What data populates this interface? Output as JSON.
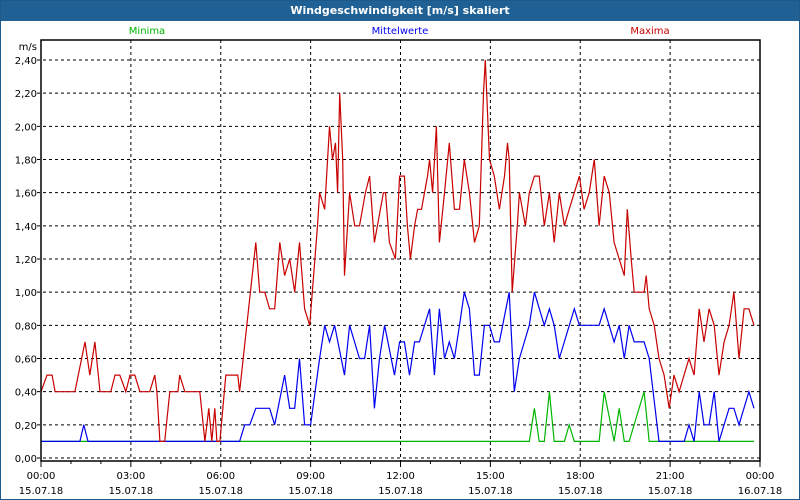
{
  "window": {
    "title": "Windgeschwindigkeit [m/s] skaliert"
  },
  "chart_data": {
    "type": "line",
    "title": "Windgeschwindigkeit [m/s] skaliert",
    "ylabel": "m/s",
    "xlabel": "",
    "ylim": [
      0,
      2.4
    ],
    "xlim_hours": [
      0,
      24
    ],
    "grid": true,
    "y_ticks": [
      "0,00",
      "0,20",
      "0,40",
      "0,60",
      "0,80",
      "1,00",
      "1,20",
      "1,40",
      "1,60",
      "1,80",
      "2,00",
      "2,20",
      "2,40"
    ],
    "x_ticks": [
      {
        "time": "00:00",
        "date": "15.07.18"
      },
      {
        "time": "03:00",
        "date": "15.07.18"
      },
      {
        "time": "06:00",
        "date": "15.07.18"
      },
      {
        "time": "09:00",
        "date": "15.07.18"
      },
      {
        "time": "12:00",
        "date": "15.07.18"
      },
      {
        "time": "15:00",
        "date": "15.07.18"
      },
      {
        "time": "18:00",
        "date": "15.07.18"
      },
      {
        "time": "21:00",
        "date": "15.07.18"
      },
      {
        "time": "00:00",
        "date": "16.07.18"
      }
    ],
    "series": [
      {
        "name": "Minima",
        "color": "#00b400",
        "points": [
          [
            0,
            0.1
          ],
          [
            16.3,
            0.1
          ],
          [
            16.47,
            0.3
          ],
          [
            16.63,
            0.1
          ],
          [
            16.8,
            0.1
          ],
          [
            16.97,
            0.4
          ],
          [
            17.13,
            0.1
          ],
          [
            17.47,
            0.1
          ],
          [
            17.63,
            0.2
          ],
          [
            17.8,
            0.1
          ],
          [
            18.63,
            0.1
          ],
          [
            18.8,
            0.4
          ],
          [
            19.13,
            0.1
          ],
          [
            19.3,
            0.3
          ],
          [
            19.47,
            0.1
          ],
          [
            19.63,
            0.1
          ],
          [
            20.13,
            0.4
          ],
          [
            20.3,
            0.1
          ],
          [
            23.8,
            0.1
          ]
        ]
      },
      {
        "name": "Mittelwerte",
        "color": "#0000f0",
        "points": [
          [
            0,
            0.1
          ],
          [
            1.3,
            0.1
          ],
          [
            1.43,
            0.2
          ],
          [
            1.57,
            0.1
          ],
          [
            6.63,
            0.1
          ],
          [
            6.8,
            0.2
          ],
          [
            6.97,
            0.2
          ],
          [
            7.17,
            0.3
          ],
          [
            7.63,
            0.3
          ],
          [
            7.8,
            0.2
          ],
          [
            8.13,
            0.5
          ],
          [
            8.3,
            0.3
          ],
          [
            8.47,
            0.3
          ],
          [
            8.63,
            0.6
          ],
          [
            8.8,
            0.2
          ],
          [
            9.0,
            0.2
          ],
          [
            9.3,
            0.6
          ],
          [
            9.47,
            0.8
          ],
          [
            9.63,
            0.7
          ],
          [
            9.8,
            0.8
          ],
          [
            10.13,
            0.5
          ],
          [
            10.3,
            0.8
          ],
          [
            10.63,
            0.6
          ],
          [
            10.8,
            0.6
          ],
          [
            10.97,
            0.8
          ],
          [
            11.13,
            0.3
          ],
          [
            11.3,
            0.6
          ],
          [
            11.47,
            0.8
          ],
          [
            11.8,
            0.5
          ],
          [
            11.97,
            0.7
          ],
          [
            12.13,
            0.7
          ],
          [
            12.3,
            0.5
          ],
          [
            12.47,
            0.7
          ],
          [
            12.63,
            0.7
          ],
          [
            12.97,
            0.9
          ],
          [
            13.13,
            0.5
          ],
          [
            13.3,
            0.9
          ],
          [
            13.47,
            0.6
          ],
          [
            13.63,
            0.7
          ],
          [
            13.8,
            0.6
          ],
          [
            13.97,
            0.8
          ],
          [
            14.13,
            1.0
          ],
          [
            14.3,
            0.9
          ],
          [
            14.47,
            0.5
          ],
          [
            14.63,
            0.5
          ],
          [
            14.8,
            0.8
          ],
          [
            14.97,
            0.8
          ],
          [
            15.13,
            0.7
          ],
          [
            15.3,
            0.7
          ],
          [
            15.63,
            1.0
          ],
          [
            15.8,
            0.4
          ],
          [
            15.97,
            0.6
          ],
          [
            16.3,
            0.8
          ],
          [
            16.47,
            1.0
          ],
          [
            16.8,
            0.8
          ],
          [
            16.97,
            0.9
          ],
          [
            17.13,
            0.8
          ],
          [
            17.3,
            0.6
          ],
          [
            17.8,
            0.9
          ],
          [
            17.97,
            0.8
          ],
          [
            18.63,
            0.8
          ],
          [
            18.8,
            0.9
          ],
          [
            19.13,
            0.7
          ],
          [
            19.3,
            0.8
          ],
          [
            19.47,
            0.6
          ],
          [
            19.63,
            0.8
          ],
          [
            19.8,
            0.7
          ],
          [
            20.13,
            0.7
          ],
          [
            20.3,
            0.6
          ],
          [
            20.63,
            0.1
          ],
          [
            21.47,
            0.1
          ],
          [
            21.63,
            0.2
          ],
          [
            21.8,
            0.1
          ],
          [
            21.97,
            0.4
          ],
          [
            22.13,
            0.2
          ],
          [
            22.3,
            0.2
          ],
          [
            22.47,
            0.4
          ],
          [
            22.63,
            0.1
          ],
          [
            22.97,
            0.3
          ],
          [
            23.13,
            0.3
          ],
          [
            23.3,
            0.2
          ],
          [
            23.63,
            0.4
          ],
          [
            23.8,
            0.3
          ]
        ]
      },
      {
        "name": "Maxima",
        "color": "#c80000",
        "points": [
          [
            0,
            0.4
          ],
          [
            0.2,
            0.5
          ],
          [
            0.37,
            0.5
          ],
          [
            0.47,
            0.4
          ],
          [
            1.13,
            0.4
          ],
          [
            1.47,
            0.7
          ],
          [
            1.63,
            0.5
          ],
          [
            1.8,
            0.7
          ],
          [
            1.97,
            0.4
          ],
          [
            2.33,
            0.4
          ],
          [
            2.47,
            0.5
          ],
          [
            2.63,
            0.5
          ],
          [
            2.83,
            0.4
          ],
          [
            2.97,
            0.5
          ],
          [
            3.13,
            0.5
          ],
          [
            3.3,
            0.4
          ],
          [
            3.63,
            0.4
          ],
          [
            3.8,
            0.5
          ],
          [
            3.87,
            0.4
          ],
          [
            3.97,
            0.1
          ],
          [
            4.13,
            0.1
          ],
          [
            4.3,
            0.4
          ],
          [
            4.57,
            0.4
          ],
          [
            4.63,
            0.5
          ],
          [
            4.8,
            0.4
          ],
          [
            5.3,
            0.4
          ],
          [
            5.47,
            0.1
          ],
          [
            5.6,
            0.3
          ],
          [
            5.7,
            0.1
          ],
          [
            5.8,
            0.3
          ],
          [
            5.87,
            0.1
          ],
          [
            5.97,
            0.1
          ],
          [
            6.17,
            0.5
          ],
          [
            6.57,
            0.5
          ],
          [
            6.63,
            0.4
          ],
          [
            7.17,
            1.3
          ],
          [
            7.3,
            1.0
          ],
          [
            7.47,
            1.0
          ],
          [
            7.63,
            0.9
          ],
          [
            7.8,
            0.9
          ],
          [
            7.97,
            1.3
          ],
          [
            8.13,
            1.1
          ],
          [
            8.3,
            1.2
          ],
          [
            8.47,
            1.0
          ],
          [
            8.63,
            1.3
          ],
          [
            8.8,
            0.9
          ],
          [
            8.97,
            0.8
          ],
          [
            9.23,
            1.4
          ],
          [
            9.3,
            1.6
          ],
          [
            9.47,
            1.5
          ],
          [
            9.63,
            2.0
          ],
          [
            9.73,
            1.8
          ],
          [
            9.83,
            1.9
          ],
          [
            9.9,
            1.6
          ],
          [
            9.97,
            2.2
          ],
          [
            10.07,
            1.8
          ],
          [
            10.13,
            1.1
          ],
          [
            10.3,
            1.6
          ],
          [
            10.47,
            1.4
          ],
          [
            10.63,
            1.4
          ],
          [
            10.83,
            1.6
          ],
          [
            10.97,
            1.7
          ],
          [
            11.13,
            1.3
          ],
          [
            11.43,
            1.6
          ],
          [
            11.5,
            1.6
          ],
          [
            11.63,
            1.3
          ],
          [
            11.83,
            1.2
          ],
          [
            11.97,
            1.7
          ],
          [
            12.13,
            1.7
          ],
          [
            12.23,
            1.4
          ],
          [
            12.33,
            1.2
          ],
          [
            12.47,
            1.4
          ],
          [
            12.57,
            1.5
          ],
          [
            12.7,
            1.5
          ],
          [
            12.9,
            1.7
          ],
          [
            12.97,
            1.8
          ],
          [
            13.07,
            1.6
          ],
          [
            13.2,
            2.0
          ],
          [
            13.3,
            1.3
          ],
          [
            13.47,
            1.6
          ],
          [
            13.63,
            1.9
          ],
          [
            13.8,
            1.5
          ],
          [
            13.97,
            1.5
          ],
          [
            14.13,
            1.8
          ],
          [
            14.3,
            1.6
          ],
          [
            14.47,
            1.3
          ],
          [
            14.63,
            1.4
          ],
          [
            14.77,
            2.2
          ],
          [
            14.83,
            2.4
          ],
          [
            14.97,
            1.8
          ],
          [
            15.13,
            1.7
          ],
          [
            15.3,
            1.5
          ],
          [
            15.47,
            1.7
          ],
          [
            15.57,
            1.9
          ],
          [
            15.63,
            1.8
          ],
          [
            15.73,
            1.0
          ],
          [
            15.9,
            1.4
          ],
          [
            15.97,
            1.6
          ],
          [
            16.07,
            1.5
          ],
          [
            16.17,
            1.4
          ],
          [
            16.3,
            1.6
          ],
          [
            16.47,
            1.7
          ],
          [
            16.63,
            1.7
          ],
          [
            16.8,
            1.4
          ],
          [
            16.97,
            1.6
          ],
          [
            17.13,
            1.3
          ],
          [
            17.3,
            1.6
          ],
          [
            17.47,
            1.4
          ],
          [
            17.63,
            1.5
          ],
          [
            17.8,
            1.6
          ],
          [
            17.97,
            1.7
          ],
          [
            18.13,
            1.5
          ],
          [
            18.3,
            1.6
          ],
          [
            18.47,
            1.8
          ],
          [
            18.63,
            1.4
          ],
          [
            18.8,
            1.7
          ],
          [
            18.97,
            1.6
          ],
          [
            19.13,
            1.3
          ],
          [
            19.3,
            1.2
          ],
          [
            19.47,
            1.1
          ],
          [
            19.57,
            1.5
          ],
          [
            19.7,
            1.2
          ],
          [
            19.8,
            1.0
          ],
          [
            20.13,
            1.0
          ],
          [
            20.2,
            1.1
          ],
          [
            20.3,
            0.9
          ],
          [
            20.47,
            0.8
          ],
          [
            20.63,
            0.6
          ],
          [
            20.8,
            0.5
          ],
          [
            20.97,
            0.3
          ],
          [
            21.13,
            0.5
          ],
          [
            21.3,
            0.4
          ],
          [
            21.63,
            0.6
          ],
          [
            21.8,
            0.5
          ],
          [
            21.97,
            0.9
          ],
          [
            22.13,
            0.7
          ],
          [
            22.3,
            0.9
          ],
          [
            22.47,
            0.8
          ],
          [
            22.63,
            0.5
          ],
          [
            22.8,
            0.7
          ],
          [
            22.97,
            0.8
          ],
          [
            23.13,
            1.0
          ],
          [
            23.3,
            0.6
          ],
          [
            23.47,
            0.9
          ],
          [
            23.63,
            0.9
          ],
          [
            23.8,
            0.8
          ]
        ]
      }
    ],
    "legend": {
      "placement": "top",
      "labels": [
        "Minima",
        "Mittelwerte",
        "Maxima"
      ]
    }
  }
}
